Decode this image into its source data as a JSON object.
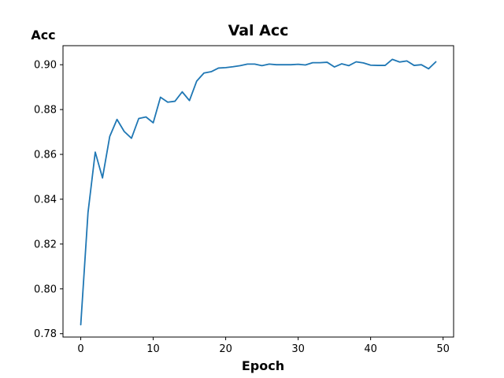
{
  "chart_data": {
    "type": "line",
    "title": "Val Acc",
    "xlabel": "Epoch",
    "ylabel": "Acc",
    "xlim": [
      -2.45,
      51.45
    ],
    "ylim": [
      0.7785,
      0.9085
    ],
    "xticks": [
      0,
      10,
      20,
      30,
      40,
      50
    ],
    "yticks": [
      0.78,
      0.8,
      0.82,
      0.84,
      0.86,
      0.88,
      0.9
    ],
    "xtick_labels": [
      "0",
      "10",
      "20",
      "30",
      "40",
      "50"
    ],
    "ytick_labels": [
      "0.78",
      "0.80",
      "0.82",
      "0.84",
      "0.86",
      "0.88",
      "0.90"
    ],
    "grid": false,
    "legend": "none",
    "line_color": "#1f77b4",
    "series": [
      {
        "x": [
          0,
          1,
          2,
          3,
          4,
          5,
          6,
          7,
          8,
          9,
          10,
          11,
          12,
          13,
          14,
          15,
          16,
          17,
          18,
          19,
          20,
          21,
          22,
          23,
          24,
          25,
          26,
          27,
          28,
          29,
          30,
          31,
          32,
          33,
          34,
          35,
          36,
          37,
          38,
          39,
          40,
          41,
          42,
          43,
          44,
          45,
          46,
          47,
          48,
          49
        ],
        "values": [
          0.784,
          0.834,
          0.861,
          0.8495,
          0.868,
          0.8756,
          0.8702,
          0.8672,
          0.876,
          0.8767,
          0.8741,
          0.8855,
          0.8833,
          0.8837,
          0.8879,
          0.884,
          0.8927,
          0.8963,
          0.8969,
          0.8985,
          0.8987,
          0.8991,
          0.8996,
          0.9003,
          0.9003,
          0.8996,
          0.9003,
          0.9,
          0.9,
          0.9,
          0.9002,
          0.8999,
          0.9009,
          0.9009,
          0.9011,
          0.899,
          0.9004,
          0.8996,
          0.9013,
          0.9008,
          0.8998,
          0.8997,
          0.8997,
          0.9024,
          0.9012,
          0.9017,
          0.8997,
          0.9,
          0.8982,
          0.9013
        ]
      }
    ]
  }
}
